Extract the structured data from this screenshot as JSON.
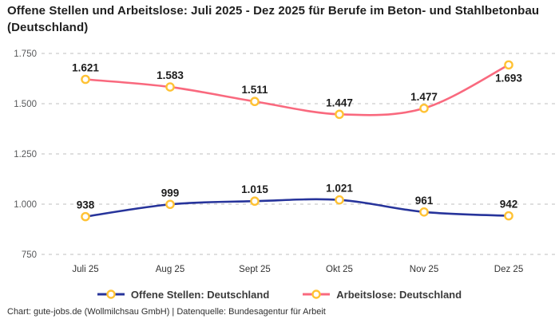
{
  "title": {
    "text": "Offene Stellen und Arbeitslose: Juli 2025 - Dez 2025 für Berufe im Beton- und Stahlbetonbau (Deutschland)"
  },
  "footer": {
    "source": "Chart: gute-jobs.de (Wollmilchsau GmbH) | Datenquelle: Bundesagentur für Arbeit"
  },
  "icons": {
    "legend_marker": "line-with-circle-marker-icon"
  },
  "colors": {
    "offene_stellen_line": "#27349B",
    "arbeitslose_line": "#F9697E",
    "marker_ring": "#FFC234",
    "marker_fill": "#FFFFFF",
    "gridline": "#cccccc",
    "axis_label": "#58595b",
    "data_label": "#1c1c1c"
  },
  "chart_data": {
    "type": "line",
    "categories": [
      "Juli 25",
      "Aug 25",
      "Sept 25",
      "Okt 25",
      "Nov 25",
      "Dez 25"
    ],
    "series": [
      {
        "name": "Offene Stellen: Deutschland",
        "color": "#27349B",
        "values": [
          938,
          999,
          1015,
          1021,
          961,
          942
        ]
      },
      {
        "name": "Arbeitslose: Deutschland",
        "color": "#F9697E",
        "values": [
          1621,
          1583,
          1511,
          1447,
          1477,
          1693
        ]
      }
    ],
    "title": "Offene Stellen und Arbeitslose: Juli 2025 - Dez 2025 für Berufe im Beton- und Stahlbetonbau (Deutschland)",
    "xlabel": "",
    "ylabel": "",
    "ylim": [
      750,
      1750
    ],
    "yticks": [
      750,
      1000,
      1250,
      1500,
      1750
    ],
    "grid": true,
    "grid_style": "dashed",
    "legend_position": "bottom",
    "data_labels": true,
    "number_format": "de-DE thousands dot",
    "marker": {
      "fill": "#FFFFFF",
      "stroke": "#FFC234"
    }
  }
}
